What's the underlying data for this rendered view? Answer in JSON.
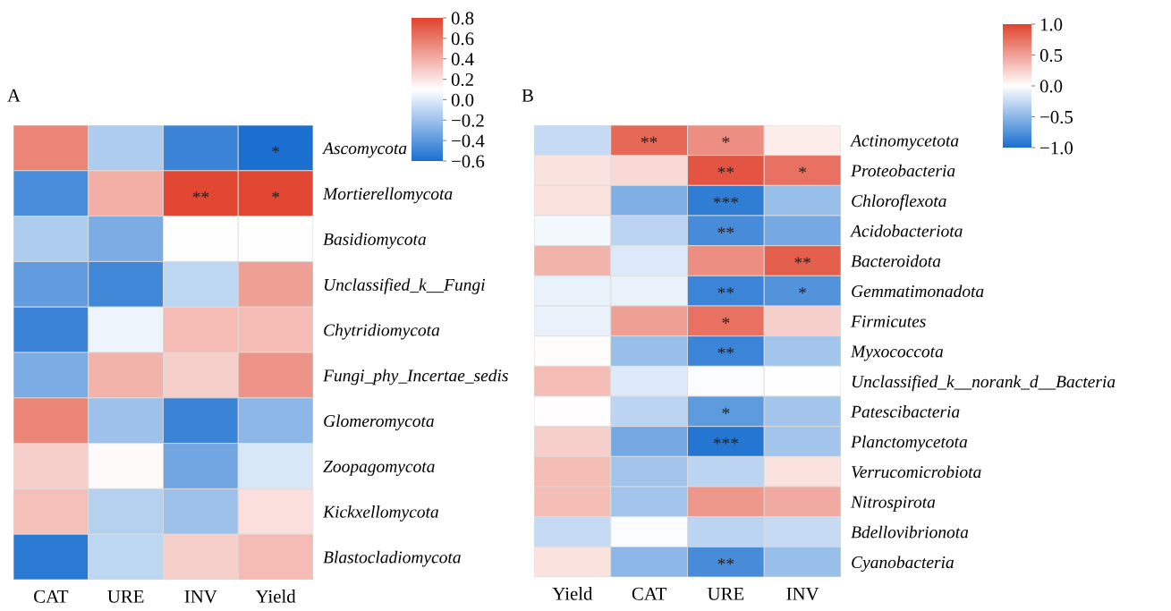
{
  "chart_data": [
    {
      "type": "heatmap",
      "title": "A",
      "categories": [
        "CAT",
        "URE",
        "INV",
        "Yield"
      ],
      "y_categories": [
        "Ascomycota",
        "Mortierellomycota",
        "Basidiomycota",
        "Unclassified_k__Fungi",
        "Chytridiomycota",
        "Fungi_phy_Incertae_sedis",
        "Glomeromycota",
        "Zoopagomycota",
        "Kickxellomycota",
        "Blastocladiomycota"
      ],
      "cells": [
        [
          0.55,
          -0.15,
          -0.5,
          -0.6
        ],
        [
          -0.45,
          0.4,
          0.78,
          0.78
        ],
        [
          -0.15,
          -0.3,
          0.1,
          0.1
        ],
        [
          -0.38,
          -0.48,
          -0.1,
          0.45
        ],
        [
          -0.5,
          0.05,
          0.35,
          0.35
        ],
        [
          -0.3,
          0.38,
          0.28,
          0.5
        ],
        [
          0.55,
          -0.2,
          -0.5,
          -0.25
        ],
        [
          0.28,
          0.12,
          -0.33,
          -0.02
        ],
        [
          0.33,
          -0.12,
          -0.2,
          0.22
        ],
        [
          -0.55,
          -0.1,
          0.28,
          0.35
        ]
      ],
      "cell_labels": [
        [
          null,
          null,
          null,
          "*"
        ],
        [
          null,
          null,
          "**",
          "*"
        ],
        [
          null,
          null,
          null,
          null
        ],
        [
          null,
          null,
          null,
          null
        ],
        [
          null,
          null,
          null,
          null
        ],
        [
          null,
          null,
          null,
          null
        ],
        [
          null,
          null,
          null,
          null
        ],
        [
          null,
          null,
          null,
          null
        ],
        [
          null,
          null,
          null,
          null
        ],
        [
          null,
          null,
          null,
          null
        ]
      ],
      "clim": [
        -0.6,
        0.8
      ],
      "cticks": [
        -0.6,
        -0.4,
        -0.2,
        {
          "value": 0,
          "label": "0.0"
        },
        0.2,
        0.4,
        0.6,
        0.8
      ]
    },
    {
      "type": "heatmap",
      "title": "B",
      "categories": [
        "Yield",
        "CAT",
        "URE",
        "INV"
      ],
      "y_categories": [
        "Actinomycetota",
        "Proteobacteria",
        "Chloroflexota",
        "Acidobacteriota",
        "Bacteroidota",
        "Gemmatimonadota",
        "Firmicutes",
        "Myxococcota",
        "Unclassified_k__norank_d__Bacteria",
        "Patescibacteria",
        "Planctomycetota",
        "Verrucomicrobiota",
        "Nitrospirota",
        "Bdellovibrionota",
        "Cyanobacteria"
      ],
      "cells": [
        [
          -0.25,
          0.8,
          0.6,
          0.1
        ],
        [
          0.15,
          0.2,
          0.9,
          0.75
        ],
        [
          0.15,
          -0.55,
          -0.9,
          -0.45
        ],
        [
          -0.05,
          -0.3,
          -0.8,
          -0.6
        ],
        [
          0.4,
          -0.15,
          0.6,
          0.85
        ],
        [
          -0.1,
          -0.1,
          -0.85,
          -0.75
        ],
        [
          -0.1,
          0.5,
          0.75,
          0.25
        ],
        [
          0.02,
          -0.45,
          -0.85,
          -0.4
        ],
        [
          0.35,
          -0.15,
          -0.02,
          0.0
        ],
        [
          0.01,
          -0.3,
          -0.7,
          -0.4
        ],
        [
          0.25,
          -0.6,
          -0.95,
          -0.4
        ],
        [
          0.35,
          -0.4,
          -0.3,
          0.15
        ],
        [
          0.35,
          -0.4,
          0.55,
          0.45
        ],
        [
          -0.25,
          -0.02,
          -0.3,
          -0.25
        ],
        [
          0.15,
          -0.5,
          -0.8,
          -0.45
        ]
      ],
      "cell_labels": [
        [
          null,
          "**",
          "*",
          null
        ],
        [
          null,
          null,
          "**",
          "*"
        ],
        [
          null,
          null,
          "***",
          null
        ],
        [
          null,
          null,
          "**",
          null
        ],
        [
          null,
          null,
          null,
          "**"
        ],
        [
          null,
          null,
          "**",
          "*"
        ],
        [
          null,
          null,
          "*",
          null
        ],
        [
          null,
          null,
          "**",
          null
        ],
        [
          null,
          null,
          null,
          null
        ],
        [
          null,
          null,
          "*",
          null
        ],
        [
          null,
          null,
          "***",
          null
        ],
        [
          null,
          null,
          null,
          null
        ],
        [
          null,
          null,
          null,
          null
        ],
        [
          null,
          null,
          null,
          null
        ],
        [
          null,
          null,
          "**",
          null
        ]
      ],
      "clim": [
        -1,
        1
      ],
      "cticks": [
        {
          "value": -1,
          "label": "−1.0"
        },
        -0.5,
        {
          "value": 0,
          "label": "0.0"
        },
        0.5,
        {
          "value": 1,
          "label": "1.0"
        }
      ]
    }
  ]
}
